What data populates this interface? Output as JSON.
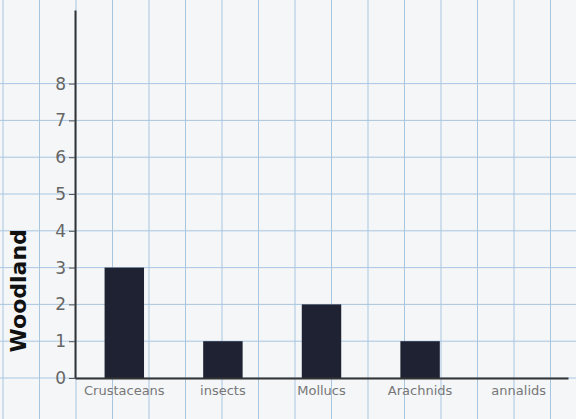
{
  "chart_data": {
    "type": "bar",
    "y_label": "Woodland",
    "categories": [
      "Crustaceans",
      "insects",
      "Mollucs",
      "Arachnids",
      "annalids"
    ],
    "values": [
      3,
      1,
      2,
      1,
      0
    ],
    "color": "#1f2233",
    "ylim": [
      0,
      10
    ],
    "yticks": [
      0,
      1,
      2,
      3,
      4,
      5,
      6,
      7,
      8
    ],
    "grid": true
  }
}
